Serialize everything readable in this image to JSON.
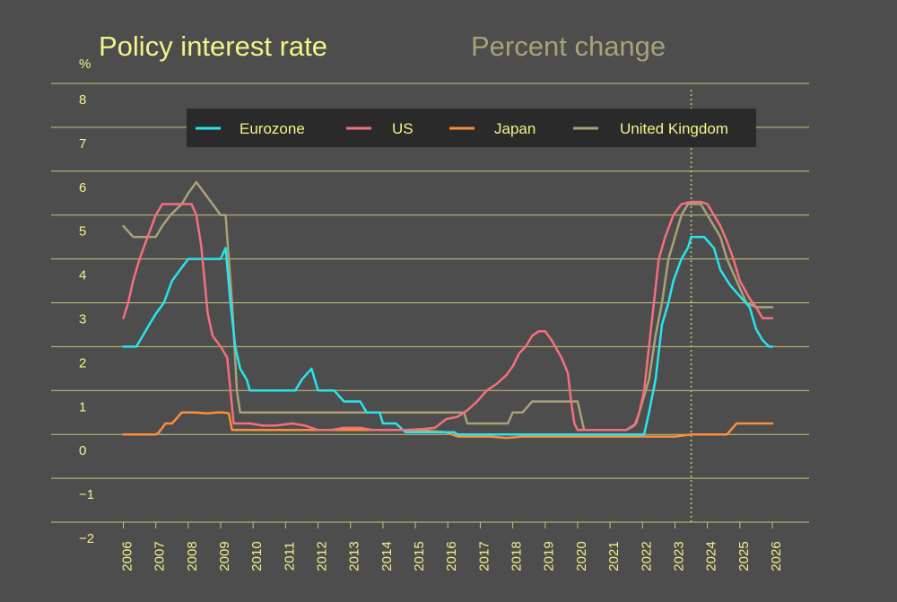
{
  "chart_data": {
    "type": "line",
    "title": "Policy interest rate",
    "subtitle": "Percent change",
    "ylabel": "%",
    "ylim": [
      -2,
      8
    ],
    "yticks": [
      "8",
      "7",
      "6",
      "5",
      "4",
      "3",
      "2",
      "1",
      "0",
      "−1",
      "−2"
    ],
    "xlim": [
      2006,
      2026
    ],
    "xticks": [
      "2006",
      "2007",
      "2008",
      "2009",
      "2010",
      "2011",
      "2012",
      "2013",
      "2014",
      "2015",
      "2016",
      "2017",
      "2018",
      "2019",
      "2020",
      "2021",
      "2022",
      "2023",
      "2024",
      "2025",
      "2026"
    ],
    "grid": true,
    "legend_placement": "top",
    "forecast_marker_x": 2023.5,
    "colors": {
      "background": "#4d4d4d",
      "grid": "#c9c57a",
      "text": "#f5f28a",
      "subtitle": "#a8a276",
      "legend_bg": "#2a2a2a",
      "marker": "#c9c57a"
    },
    "series": [
      {
        "name": "Eurozone",
        "color": "#27e5ee",
        "points": [
          [
            2006,
            2
          ],
          [
            2006.4,
            2
          ],
          [
            2006.6,
            2.25
          ],
          [
            2006.8,
            2.5
          ],
          [
            2007.0,
            2.75
          ],
          [
            2007.25,
            3
          ],
          [
            2007.5,
            3.5
          ],
          [
            2007.75,
            3.75
          ],
          [
            2008.0,
            4
          ],
          [
            2008.5,
            4
          ],
          [
            2008.8,
            4
          ],
          [
            2009.0,
            4
          ],
          [
            2009.15,
            4.25
          ],
          [
            2009.3,
            3
          ],
          [
            2009.45,
            2
          ],
          [
            2009.6,
            1.5
          ],
          [
            2009.8,
            1.25
          ],
          [
            2009.9,
            1
          ],
          [
            2010,
            1
          ],
          [
            2011,
            1
          ],
          [
            2011.3,
            1
          ],
          [
            2011.5,
            1.25
          ],
          [
            2011.8,
            1.5
          ],
          [
            2012.0,
            1
          ],
          [
            2012.5,
            1
          ],
          [
            2012.8,
            0.75
          ],
          [
            2013.3,
            0.75
          ],
          [
            2013.5,
            0.5
          ],
          [
            2013.9,
            0.5
          ],
          [
            2014.0,
            0.25
          ],
          [
            2014.4,
            0.25
          ],
          [
            2014.7,
            0.05
          ],
          [
            2016.2,
            0.05
          ],
          [
            2016.3,
            0
          ],
          [
            2021.9,
            0
          ],
          [
            2022.05,
            0
          ],
          [
            2022.2,
            0.5
          ],
          [
            2022.4,
            1.25
          ],
          [
            2022.6,
            2.5
          ],
          [
            2022.8,
            3
          ],
          [
            2022.95,
            3.5
          ],
          [
            2023.2,
            4
          ],
          [
            2023.4,
            4.25
          ],
          [
            2023.5,
            4.5
          ],
          [
            2023.9,
            4.5
          ],
          [
            2024.2,
            4.25
          ],
          [
            2024.4,
            3.75
          ],
          [
            2024.7,
            3.4
          ],
          [
            2025.0,
            3.15
          ],
          [
            2025.3,
            2.9
          ],
          [
            2025.5,
            2.4
          ],
          [
            2025.7,
            2.15
          ],
          [
            2025.9,
            2
          ],
          [
            2026,
            2
          ]
        ]
      },
      {
        "name": "US",
        "color": "#f56f7c",
        "points": [
          [
            2006,
            2.65
          ],
          [
            2006.15,
            3
          ],
          [
            2006.3,
            3.5
          ],
          [
            2006.5,
            4
          ],
          [
            2006.75,
            4.5
          ],
          [
            2007.0,
            5
          ],
          [
            2007.2,
            5.25
          ],
          [
            2007.6,
            5.25
          ],
          [
            2007.9,
            5.25
          ],
          [
            2008.1,
            5.25
          ],
          [
            2008.25,
            5.0
          ],
          [
            2008.4,
            4.3
          ],
          [
            2008.6,
            2.75
          ],
          [
            2008.75,
            2.25
          ],
          [
            2009.0,
            2
          ],
          [
            2009.2,
            1.75
          ],
          [
            2009.4,
            0.25
          ],
          [
            2009.6,
            0.25
          ],
          [
            2009.9,
            0.25
          ],
          [
            2010.3,
            0.2
          ],
          [
            2010.7,
            0.2
          ],
          [
            2011.2,
            0.25
          ],
          [
            2011.6,
            0.2
          ],
          [
            2012.0,
            0.1
          ],
          [
            2012.4,
            0.1
          ],
          [
            2012.8,
            0.15
          ],
          [
            2013.3,
            0.15
          ],
          [
            2013.7,
            0.1
          ],
          [
            2014.2,
            0.1
          ],
          [
            2014.7,
            0.1
          ],
          [
            2015.2,
            0.12
          ],
          [
            2015.6,
            0.15
          ],
          [
            2015.95,
            0.35
          ],
          [
            2016.3,
            0.4
          ],
          [
            2016.6,
            0.55
          ],
          [
            2016.9,
            0.75
          ],
          [
            2017.2,
            1.0
          ],
          [
            2017.5,
            1.15
          ],
          [
            2017.8,
            1.35
          ],
          [
            2018.0,
            1.55
          ],
          [
            2018.2,
            1.85
          ],
          [
            2018.4,
            2.0
          ],
          [
            2018.6,
            2.25
          ],
          [
            2018.8,
            2.35
          ],
          [
            2019.0,
            2.35
          ],
          [
            2019.2,
            2.15
          ],
          [
            2019.5,
            1.75
          ],
          [
            2019.7,
            1.4
          ],
          [
            2019.8,
            0.75
          ],
          [
            2019.9,
            0.25
          ],
          [
            2020.0,
            0.1
          ],
          [
            2021.5,
            0.1
          ],
          [
            2021.75,
            0.2
          ],
          [
            2021.9,
            0.5
          ],
          [
            2022.05,
            1.0
          ],
          [
            2022.2,
            2
          ],
          [
            2022.35,
            3.0
          ],
          [
            2022.5,
            4.0
          ],
          [
            2022.7,
            4.5
          ],
          [
            2022.95,
            5
          ],
          [
            2023.2,
            5.25
          ],
          [
            2023.5,
            5.3
          ],
          [
            2023.8,
            5.3
          ],
          [
            2024.0,
            5.25
          ],
          [
            2024.2,
            5.0
          ],
          [
            2024.4,
            4.75
          ],
          [
            2024.6,
            4.4
          ],
          [
            2024.8,
            4.0
          ],
          [
            2025.0,
            3.5
          ],
          [
            2025.3,
            3.1
          ],
          [
            2025.5,
            2.9
          ],
          [
            2025.7,
            2.65
          ],
          [
            2025.9,
            2.65
          ],
          [
            2026,
            2.65
          ]
        ]
      },
      {
        "name": "Japan",
        "color": "#fb8e3c",
        "points": [
          [
            2006,
            0
          ],
          [
            2006.5,
            0
          ],
          [
            2007.0,
            0
          ],
          [
            2007.1,
            0.05
          ],
          [
            2007.3,
            0.25
          ],
          [
            2007.5,
            0.25
          ],
          [
            2007.8,
            0.5
          ],
          [
            2008.2,
            0.5
          ],
          [
            2008.6,
            0.48
          ],
          [
            2008.9,
            0.5
          ],
          [
            2009.1,
            0.5
          ],
          [
            2009.25,
            0.48
          ],
          [
            2009.35,
            0.1
          ],
          [
            2009.6,
            0.1
          ],
          [
            2010,
            0.1
          ],
          [
            2011,
            0.1
          ],
          [
            2012,
            0.1
          ],
          [
            2013,
            0.1
          ],
          [
            2014,
            0.1
          ],
          [
            2015,
            0.1
          ],
          [
            2015.95,
            0.05
          ],
          [
            2016.3,
            -0.05
          ],
          [
            2016.8,
            -0.05
          ],
          [
            2017.3,
            -0.05
          ],
          [
            2017.8,
            -0.08
          ],
          [
            2018.3,
            -0.05
          ],
          [
            2018.8,
            -0.05
          ],
          [
            2019.3,
            -0.05
          ],
          [
            2019.8,
            -0.05
          ],
          [
            2020.3,
            -0.05
          ],
          [
            2020.8,
            -0.05
          ],
          [
            2021.3,
            -0.05
          ],
          [
            2021.8,
            -0.05
          ],
          [
            2022.2,
            -0.05
          ],
          [
            2022.6,
            -0.05
          ],
          [
            2023.0,
            -0.05
          ],
          [
            2023.5,
            0
          ],
          [
            2024.0,
            0
          ],
          [
            2024.3,
            0
          ],
          [
            2024.6,
            0
          ],
          [
            2024.9,
            0.25
          ],
          [
            2025.2,
            0.25
          ],
          [
            2025.5,
            0.25
          ],
          [
            2025.8,
            0.25
          ],
          [
            2026,
            0.25
          ]
        ]
      },
      {
        "name": "United Kingdom",
        "color": "#a8a276",
        "points": [
          [
            2006,
            4.75
          ],
          [
            2006.3,
            4.5
          ],
          [
            2006.6,
            4.5
          ],
          [
            2007.0,
            4.5
          ],
          [
            2007.2,
            4.75
          ],
          [
            2007.45,
            5
          ],
          [
            2007.8,
            5.25
          ],
          [
            2008.0,
            5.5
          ],
          [
            2008.25,
            5.75
          ],
          [
            2008.5,
            5.5
          ],
          [
            2008.75,
            5.25
          ],
          [
            2009.0,
            5.0
          ],
          [
            2009.15,
            5.0
          ],
          [
            2009.35,
            3
          ],
          [
            2009.5,
            1.0
          ],
          [
            2009.6,
            0.5
          ],
          [
            2010,
            0.5
          ],
          [
            2011,
            0.5
          ],
          [
            2012,
            0.5
          ],
          [
            2013,
            0.5
          ],
          [
            2014,
            0.5
          ],
          [
            2015,
            0.5
          ],
          [
            2016,
            0.5
          ],
          [
            2016.5,
            0.5
          ],
          [
            2016.6,
            0.25
          ],
          [
            2017.0,
            0.25
          ],
          [
            2017.5,
            0.25
          ],
          [
            2017.85,
            0.25
          ],
          [
            2018.0,
            0.5
          ],
          [
            2018.3,
            0.5
          ],
          [
            2018.6,
            0.75
          ],
          [
            2019.0,
            0.75
          ],
          [
            2019.5,
            0.75
          ],
          [
            2020.0,
            0.75
          ],
          [
            2020.2,
            0.1
          ],
          [
            2020.5,
            0.1
          ],
          [
            2021.0,
            0.1
          ],
          [
            2021.5,
            0.1
          ],
          [
            2021.8,
            0.25
          ],
          [
            2022.0,
            0.75
          ],
          [
            2022.2,
            1.25
          ],
          [
            2022.4,
            2.25
          ],
          [
            2022.6,
            3.0
          ],
          [
            2022.8,
            4.0
          ],
          [
            2023.0,
            4.5
          ],
          [
            2023.2,
            5
          ],
          [
            2023.4,
            5.25
          ],
          [
            2023.6,
            5.25
          ],
          [
            2023.8,
            5.25
          ],
          [
            2024.0,
            5.0
          ],
          [
            2024.2,
            4.75
          ],
          [
            2024.4,
            4.5
          ],
          [
            2024.6,
            4.0
          ],
          [
            2024.9,
            3.5
          ],
          [
            2025.2,
            3.0
          ],
          [
            2025.5,
            2.9
          ],
          [
            2025.8,
            2.9
          ],
          [
            2026,
            2.9
          ]
        ]
      }
    ]
  }
}
